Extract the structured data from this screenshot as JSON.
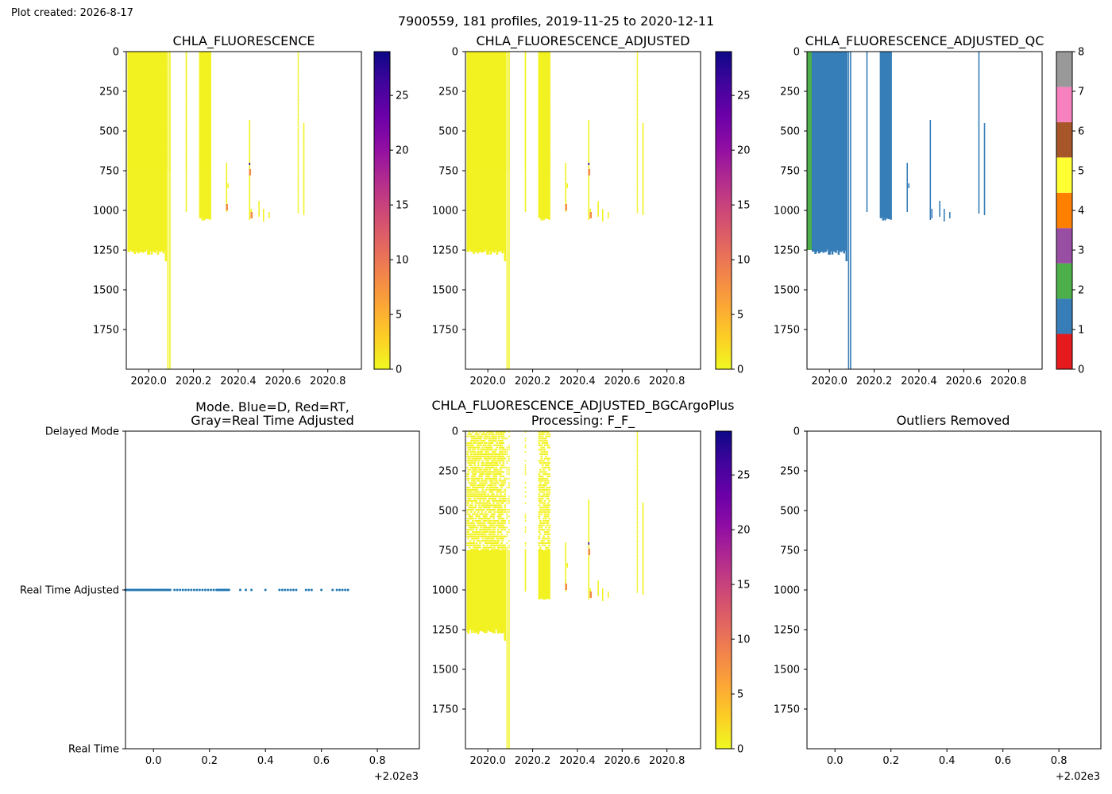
{
  "figure": {
    "created_label": "Plot created: 2026-8-17",
    "suptitle": "7900559, 181 profiles, 2019-11-25 to 2020-12-11"
  },
  "chart_data": [
    {
      "id": "raw",
      "type": "heatmap",
      "title": "CHLA_FLUORESCENCE",
      "xlim": [
        2019.9,
        2020.95
      ],
      "ylim": [
        2000,
        0
      ],
      "xticks": [
        2020.0,
        2020.2,
        2020.4,
        2020.6,
        2020.8
      ],
      "xtick_labels": [
        "2020.0",
        "2020.2",
        "2020.4",
        "2020.6",
        "2020.8"
      ],
      "yticks": [
        0,
        250,
        500,
        750,
        1000,
        1250,
        1500,
        1750
      ],
      "yticklabels": [
        "0",
        "250",
        "500",
        "750",
        "1000",
        "1250",
        "1500",
        "1750"
      ],
      "colorbar": {
        "cmap": "plasma_r",
        "range": [
          0,
          29
        ],
        "ticks": [
          0,
          5,
          10,
          15,
          20,
          25
        ]
      },
      "profiles": "dense",
      "background_value": 0.5
    },
    {
      "id": "adjusted",
      "type": "heatmap",
      "title": "CHLA_FLUORESCENCE_ADJUSTED",
      "xlim": [
        2019.9,
        2020.95
      ],
      "ylim": [
        2000,
        0
      ],
      "xticks": [
        2020.0,
        2020.2,
        2020.4,
        2020.6,
        2020.8
      ],
      "xtick_labels": [
        "2020.0",
        "2020.2",
        "2020.4",
        "2020.6",
        "2020.8"
      ],
      "yticks": [
        0,
        250,
        500,
        750,
        1000,
        1250,
        1500,
        1750
      ],
      "yticklabels": [
        "0",
        "250",
        "500",
        "750",
        "1000",
        "1250",
        "1500",
        "1750"
      ],
      "colorbar": {
        "cmap": "plasma_r",
        "range": [
          0,
          29
        ],
        "ticks": [
          0,
          5,
          10,
          15,
          20,
          25
        ]
      },
      "profiles": "dense",
      "background_value": 0.5
    },
    {
      "id": "qc",
      "type": "heatmap",
      "title": "CHLA_FLUORESCENCE_ADJUSTED_QC",
      "xlim": [
        2019.9,
        2020.95
      ],
      "ylim": [
        2000,
        0
      ],
      "xticks": [
        2020.0,
        2020.2,
        2020.4,
        2020.6,
        2020.8
      ],
      "xtick_labels": [
        "2020.0",
        "2020.2",
        "2020.4",
        "2020.6",
        "2020.8"
      ],
      "yticks": [
        0,
        250,
        500,
        750,
        1000,
        1250,
        1500,
        1750
      ],
      "yticklabels": [
        "0",
        "250",
        "500",
        "750",
        "1000",
        "1250",
        "1500",
        "1750"
      ],
      "colorbar": {
        "cmap": "qc",
        "range": [
          0,
          8
        ],
        "ticks": [
          0,
          1,
          2,
          3,
          4,
          5,
          6,
          7,
          8
        ],
        "colors": [
          "#e41a1c",
          "#377eb8",
          "#4daf4a",
          "#984ea3",
          "#ff7f00",
          "#ffff33",
          "#a65628",
          "#f781bf",
          "#999999"
        ]
      },
      "profiles": "qc"
    },
    {
      "id": "mode",
      "type": "scatter",
      "title": "Mode. Blue=D, Red=RT,\nGray=Real Time Adjusted",
      "title_lines": [
        "Mode. Blue=D, Red=RT,",
        "Gray=Real Time Adjusted"
      ],
      "xlim": [
        -0.1,
        0.95
      ],
      "ylim": [
        0,
        2
      ],
      "xticks": [
        0.0,
        0.2,
        0.4,
        0.6,
        0.8
      ],
      "xtick_labels": [
        "0.0",
        "0.2",
        "0.4",
        "0.6",
        "0.8"
      ],
      "x_offset_label": "+2.02e3",
      "ytick_values": [
        0,
        1,
        2
      ],
      "yticklabels": [
        "Real Time",
        "Real Time Adjusted",
        "Delayed Mode"
      ],
      "point_color": "#1f77b4",
      "series": [
        {
          "x": [
            -0.1,
            -0.095,
            -0.09,
            -0.085,
            -0.08,
            -0.075,
            -0.07,
            -0.065,
            -0.06,
            -0.055,
            -0.05,
            -0.045,
            -0.04,
            -0.035,
            -0.03,
            -0.025,
            -0.02,
            -0.015,
            -0.01,
            -0.005,
            0.0,
            0.005,
            0.01,
            0.015,
            0.02,
            0.025,
            0.03,
            0.035,
            0.04,
            0.045,
            0.05,
            0.055,
            0.06,
            0.075,
            0.085,
            0.095,
            0.105,
            0.115,
            0.125,
            0.135,
            0.145,
            0.155,
            0.165,
            0.175,
            0.185,
            0.195,
            0.205,
            0.215,
            0.225,
            0.23,
            0.235,
            0.24,
            0.245,
            0.25,
            0.255,
            0.26,
            0.265,
            0.27,
            0.31,
            0.33,
            0.35,
            0.4,
            0.45,
            0.46,
            0.47,
            0.48,
            0.49,
            0.5,
            0.51,
            0.545,
            0.555,
            0.565,
            0.6,
            0.64,
            0.655,
            0.665,
            0.675,
            0.685,
            0.695
          ],
          "y": [
            1,
            1,
            1,
            1,
            1,
            1,
            1,
            1,
            1,
            1,
            1,
            1,
            1,
            1,
            1,
            1,
            1,
            1,
            1,
            1,
            1,
            1,
            1,
            1,
            1,
            1,
            1,
            1,
            1,
            1,
            1,
            1,
            1,
            1,
            1,
            1,
            1,
            1,
            1,
            1,
            1,
            1,
            1,
            1,
            1,
            1,
            1,
            1,
            1,
            1,
            1,
            1,
            1,
            1,
            1,
            1,
            1,
            1,
            1,
            1,
            1,
            1,
            1,
            1,
            1,
            1,
            1,
            1,
            1,
            1,
            1,
            1,
            1,
            1,
            1,
            1,
            1,
            1,
            1
          ]
        }
      ]
    },
    {
      "id": "bgc",
      "type": "heatmap",
      "title": "CHLA_FLUORESCENCE_ADJUSTED_BGCArgoPlus\nProcessing: F_F_",
      "title_lines": [
        "CHLA_FLUORESCENCE_ADJUSTED_BGCArgoPlus",
        "Processing: F_F_"
      ],
      "xlim": [
        2019.9,
        2020.95
      ],
      "ylim": [
        2000,
        0
      ],
      "xticks": [
        2020.0,
        2020.2,
        2020.4,
        2020.6,
        2020.8
      ],
      "xtick_labels": [
        "2020.0",
        "2020.2",
        "2020.4",
        "2020.6",
        "2020.8"
      ],
      "yticks": [
        0,
        250,
        500,
        750,
        1000,
        1250,
        1500,
        1750
      ],
      "yticklabels": [
        "0",
        "250",
        "500",
        "750",
        "1000",
        "1250",
        "1500",
        "1750"
      ],
      "colorbar": {
        "cmap": "plasma_r",
        "range": [
          0,
          29
        ],
        "ticks": [
          0,
          5,
          10,
          15,
          20,
          25
        ]
      },
      "profiles": "sparse",
      "background_value": 0.5
    },
    {
      "id": "outliers",
      "type": "scatter",
      "title": "Outliers Removed",
      "xlim": [
        -0.1,
        0.95
      ],
      "ylim": [
        2000,
        0
      ],
      "xticks": [
        0.0,
        0.2,
        0.4,
        0.6,
        0.8
      ],
      "xtick_labels": [
        "0.0",
        "0.2",
        "0.4",
        "0.6",
        "0.8"
      ],
      "x_offset_label": "+2.02e3",
      "yticks": [
        0,
        250,
        500,
        750,
        1000,
        1250,
        1500,
        1750
      ],
      "yticklabels": [
        "0",
        "250",
        "500",
        "750",
        "1000",
        "1250",
        "1500",
        "1750"
      ],
      "series": []
    }
  ]
}
